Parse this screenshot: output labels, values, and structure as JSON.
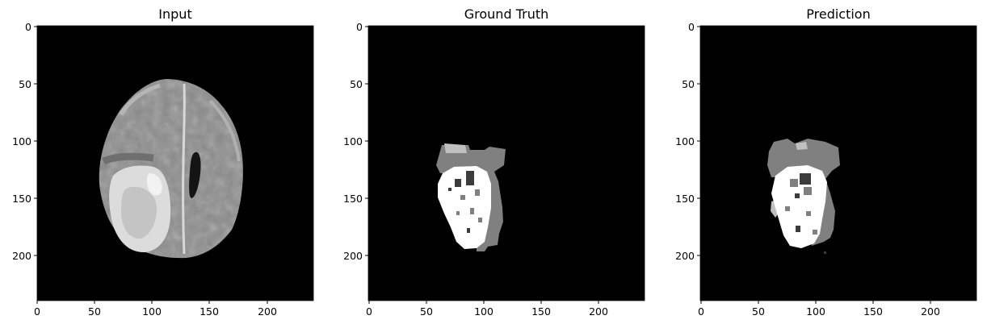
{
  "chart_data": [
    {
      "type": "heatmap",
      "title": "Input",
      "image": "grayscale-mri-axial-slice",
      "xlim": [
        0,
        240
      ],
      "ylim": [
        240,
        0
      ],
      "x_ticks": [
        "0",
        "50",
        "100",
        "150",
        "200"
      ],
      "y_ticks": [
        "0",
        "50",
        "100",
        "150",
        "200"
      ],
      "xlabel": "",
      "ylabel": "",
      "colormap": "gray",
      "grid": false
    },
    {
      "type": "heatmap",
      "title": "Ground Truth",
      "image": "tumor-segmentation-mask",
      "xlim": [
        0,
        240
      ],
      "ylim": [
        240,
        0
      ],
      "x_ticks": [
        "0",
        "50",
        "100",
        "150",
        "200"
      ],
      "y_ticks": [
        "0",
        "50",
        "100",
        "150",
        "200"
      ],
      "xlabel": "",
      "ylabel": "",
      "colormap": "gray",
      "grid": false
    },
    {
      "type": "heatmap",
      "title": "Prediction",
      "image": "predicted-segmentation-mask",
      "xlim": [
        0,
        240
      ],
      "ylim": [
        240,
        0
      ],
      "x_ticks": [
        "0",
        "50",
        "100",
        "150",
        "200"
      ],
      "y_ticks": [
        "0",
        "50",
        "100",
        "150",
        "200"
      ],
      "xlabel": "",
      "ylabel": "",
      "colormap": "gray",
      "grid": false
    }
  ]
}
